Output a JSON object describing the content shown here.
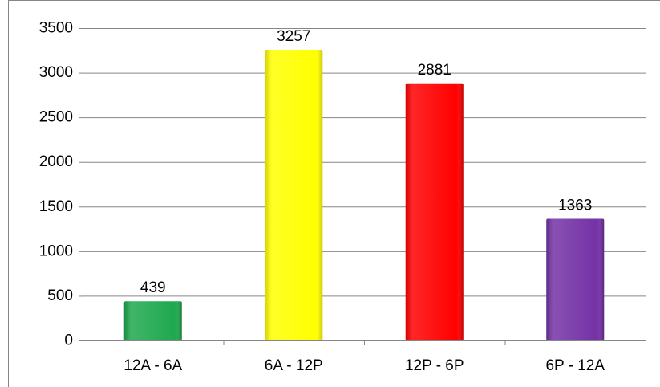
{
  "chart_data": {
    "type": "bar",
    "categories": [
      "12A - 6A",
      "6A - 12P",
      "12P - 6P",
      "6P - 12A"
    ],
    "values": [
      439,
      3257,
      2881,
      1363
    ],
    "colors": [
      "#1fa84f",
      "#ffff00",
      "#ff0000",
      "#7432a6"
    ],
    "ylim": [
      0,
      3500
    ],
    "yticks": [
      0,
      500,
      1000,
      1500,
      2000,
      2500,
      3000,
      3500
    ],
    "grid": true
  }
}
